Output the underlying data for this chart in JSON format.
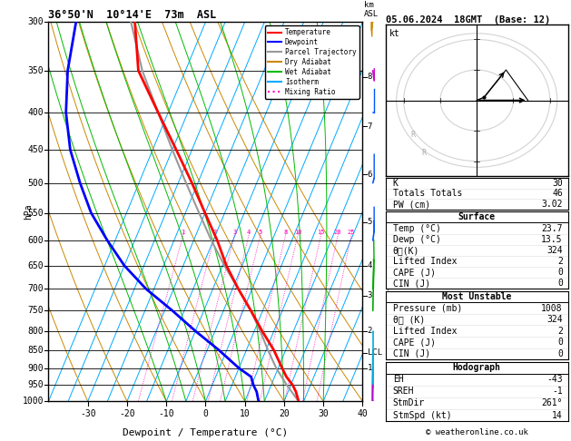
{
  "title_left": "36°50'N  10°14'E  73m  ASL",
  "title_right": "05.06.2024  18GMT  (Base: 12)",
  "xlabel": "Dewpoint / Temperature (°C)",
  "ylabel_left": "hPa",
  "pressure_ticks": [
    300,
    350,
    400,
    450,
    500,
    550,
    600,
    650,
    700,
    750,
    800,
    850,
    900,
    950,
    1000
  ],
  "temp_range": [
    -40,
    40
  ],
  "temp_ticks": [
    -30,
    -20,
    -10,
    0,
    10,
    20,
    30,
    40
  ],
  "isotherm_temps": [
    -40,
    -35,
    -30,
    -25,
    -20,
    -15,
    -10,
    -5,
    0,
    5,
    10,
    15,
    20,
    25,
    30,
    35,
    40
  ],
  "dry_adiabat_temps": [
    -40,
    -30,
    -20,
    -10,
    0,
    10,
    20,
    30,
    40,
    50,
    60
  ],
  "wet_adiabat_temps": [
    -10,
    -5,
    0,
    5,
    10,
    15,
    20,
    25,
    30
  ],
  "mixing_ratio_vals": [
    1,
    2,
    3,
    4,
    5,
    8,
    10,
    15,
    20,
    25
  ],
  "temperature_profile": {
    "pressure": [
      1000,
      970,
      950,
      925,
      900,
      850,
      800,
      750,
      700,
      650,
      600,
      550,
      500,
      450,
      400,
      350,
      300
    ],
    "temp": [
      23.7,
      22.0,
      20.5,
      18.0,
      16.0,
      12.0,
      7.0,
      2.0,
      -3.5,
      -9.0,
      -14.0,
      -20.0,
      -26.5,
      -34.0,
      -42.5,
      -52.0,
      -58.0
    ]
  },
  "dewpoint_profile": {
    "pressure": [
      1000,
      970,
      950,
      925,
      900,
      850,
      800,
      750,
      700,
      650,
      600,
      550,
      500,
      450,
      400,
      350,
      300
    ],
    "temp": [
      13.5,
      12.0,
      10.5,
      9.0,
      5.0,
      -2.0,
      -10.0,
      -18.0,
      -27.0,
      -35.0,
      -42.0,
      -49.0,
      -55.0,
      -61.0,
      -66.0,
      -70.0,
      -73.0
    ]
  },
  "parcel_profile": {
    "pressure": [
      1000,
      950,
      900,
      850,
      800,
      750,
      700,
      650,
      600,
      550,
      500,
      450,
      400,
      350,
      300
    ],
    "temp": [
      23.7,
      19.0,
      14.5,
      10.5,
      6.5,
      2.0,
      -3.5,
      -9.5,
      -15.5,
      -21.5,
      -28.0,
      -35.0,
      -42.5,
      -51.0,
      -59.0
    ]
  },
  "lcl_pressure": 857,
  "isotherm_color": "#00aaff",
  "dry_adiabat_color": "#cc8800",
  "wet_adiabat_color": "#00bb00",
  "mixing_ratio_color": "#ff00bb",
  "temp_color": "#ff0000",
  "dewpoint_color": "#0000ff",
  "parcel_color": "#999999",
  "legend_items": [
    {
      "label": "Temperature",
      "color": "#ff0000",
      "style": "solid"
    },
    {
      "label": "Dewpoint",
      "color": "#0000ff",
      "style": "solid"
    },
    {
      "label": "Parcel Trajectory",
      "color": "#999999",
      "style": "solid"
    },
    {
      "label": "Dry Adiabat",
      "color": "#cc8800",
      "style": "solid"
    },
    {
      "label": "Wet Adiabat",
      "color": "#00bb00",
      "style": "solid"
    },
    {
      "label": "Isotherm",
      "color": "#00aaff",
      "style": "solid"
    },
    {
      "label": "Mixing Ratio",
      "color": "#ff00bb",
      "style": "dotted"
    }
  ],
  "stats": {
    "K": 30,
    "Totals Totals": 46,
    "PW (cm)": 3.02,
    "Surface": {
      "Temp": 23.7,
      "Dewp": 13.5,
      "theta_e": 324,
      "Lifted Index": 2,
      "CAPE": 0,
      "CIN": 0
    },
    "Most Unstable": {
      "Pressure": 1008,
      "theta_e": 324,
      "Lifted Index": 2,
      "CAPE": 0,
      "CIN": 0
    },
    "Hodograph": {
      "EH": -43,
      "SREH": -1,
      "StmDir": 261,
      "StmSpd": 14
    }
  },
  "km_labels": [
    {
      "label": "8",
      "pressure": 357
    },
    {
      "label": "7",
      "pressure": 418
    },
    {
      "label": "6",
      "pressure": 487
    },
    {
      "label": "5",
      "pressure": 566
    },
    {
      "label": "4",
      "pressure": 650
    },
    {
      "label": "3",
      "pressure": 715
    },
    {
      "label": "2",
      "pressure": 800
    },
    {
      "label": "LCL",
      "pressure": 857
    },
    {
      "label": "1",
      "pressure": 900
    }
  ],
  "copyright": "© weatheronline.co.uk",
  "wind_barbs": [
    {
      "pressure": 300,
      "speed": 35,
      "dir": 285,
      "color": "#cc8800"
    },
    {
      "pressure": 350,
      "speed": 8,
      "dir": 100,
      "color": "#cc00cc"
    },
    {
      "pressure": 400,
      "speed": 12,
      "dir": 90,
      "color": "#0055ff"
    },
    {
      "pressure": 500,
      "speed": 14,
      "dir": 85,
      "color": "#0055ff"
    },
    {
      "pressure": 600,
      "speed": 18,
      "dir": 80,
      "color": "#0055ff"
    },
    {
      "pressure": 700,
      "speed": 10,
      "dir": 60,
      "color": "#00aa00"
    },
    {
      "pressure": 750,
      "speed": 5,
      "dir": 40,
      "color": "#00aa00"
    },
    {
      "pressure": 800,
      "speed": 8,
      "dir": 180,
      "color": "#00aadd"
    },
    {
      "pressure": 850,
      "speed": 10,
      "dir": 200,
      "color": "#00aadd"
    },
    {
      "pressure": 900,
      "speed": 5,
      "dir": 220,
      "color": "#00aadd"
    },
    {
      "pressure": 950,
      "speed": 3,
      "dir": 200,
      "color": "#cc00cc"
    },
    {
      "pressure": 1000,
      "speed": 2,
      "dir": 180,
      "color": "#cc00cc"
    }
  ]
}
